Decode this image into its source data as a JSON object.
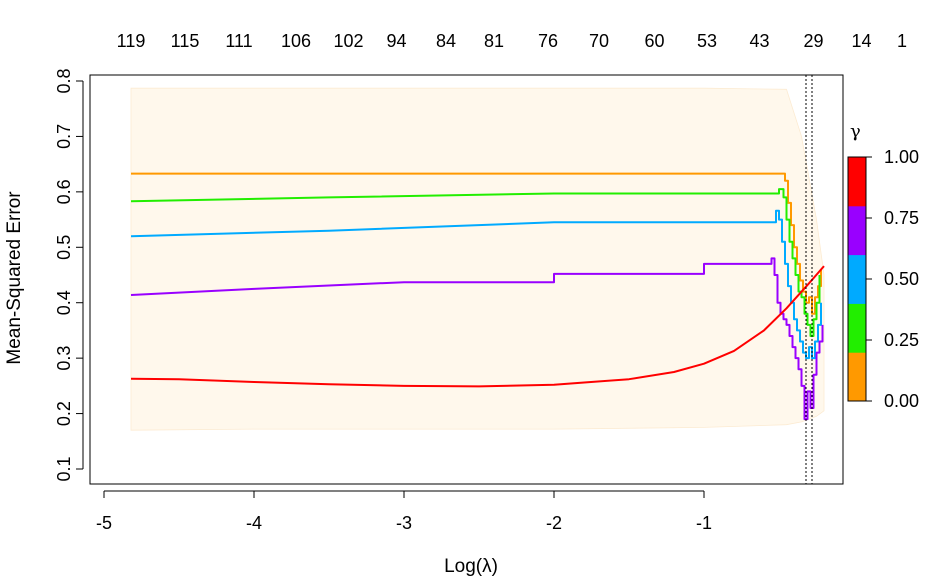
{
  "chart_data": {
    "type": "line",
    "xlabel": "Log(λ)",
    "ylabel": "Mean-Squared Error",
    "xlim": [
      -5.0,
      -0.1
    ],
    "ylim": [
      0.08,
      0.82
    ],
    "x_ticks": [
      -5,
      -4,
      -3,
      -2,
      -1
    ],
    "x_tick_labels": [
      "-5",
      "-4",
      "-3",
      "-2",
      "-1"
    ],
    "y_ticks": [
      0.1,
      0.2,
      0.3,
      0.4,
      0.5,
      0.6,
      0.7,
      0.8
    ],
    "y_tick_labels": [
      "0.1",
      "0.2",
      "0.3",
      "0.4",
      "0.5",
      "0.6",
      "0.7",
      "0.8"
    ],
    "top_axis": {
      "x": [
        -4.82,
        -4.46,
        -4.1,
        -3.72,
        -3.37,
        -3.05,
        -2.72,
        -2.4,
        -2.04,
        -1.7,
        -1.33,
        -0.98,
        -0.63,
        -0.27,
        0.05,
        0.32
      ],
      "labels": [
        "119",
        "115",
        "111",
        "106",
        "102",
        "94",
        "84",
        "81",
        "76",
        "70",
        "60",
        "53",
        "43",
        "29",
        "14",
        "1"
      ]
    },
    "vlines": [
      -0.32,
      -0.28
    ],
    "legend": {
      "title": "γ",
      "position": "right",
      "colors": [
        "#FF9900",
        "#22EE00",
        "#00AAFF",
        "#9900FF",
        "#FF0000"
      ],
      "tick_labels": [
        "0.00",
        "0.25",
        "0.50",
        "0.75",
        "1.00"
      ]
    },
    "series": [
      {
        "color": "#FF9900",
        "x": [
          -4.82,
          -1.0,
          -0.48,
          -0.46,
          -0.44,
          -0.42,
          -0.4,
          -0.38,
          -0.36,
          -0.34,
          -0.32,
          -0.3,
          -0.28,
          -0.26,
          -0.24,
          -0.22
        ],
        "y": [
          0.633,
          0.633,
          0.633,
          0.62,
          0.58,
          0.54,
          0.5,
          0.47,
          0.44,
          0.42,
          0.4,
          0.41,
          0.38,
          0.41,
          0.43,
          0.46
        ]
      },
      {
        "color": "#22EE00",
        "x": [
          -4.82,
          -3.5,
          -2.0,
          -0.5,
          -0.47,
          -0.45,
          -0.43,
          -0.41,
          -0.39,
          -0.37,
          -0.35,
          -0.33,
          -0.31,
          -0.29,
          -0.27,
          -0.25,
          -0.23
        ],
        "y": [
          0.583,
          0.59,
          0.597,
          0.605,
          0.59,
          0.55,
          0.51,
          0.48,
          0.45,
          0.42,
          0.41,
          0.38,
          0.36,
          0.34,
          0.37,
          0.4,
          0.45
        ]
      },
      {
        "color": "#00AAFF",
        "x": [
          -4.82,
          -3.5,
          -2.0,
          -0.52,
          -0.5,
          -0.48,
          -0.46,
          -0.44,
          -0.42,
          -0.4,
          -0.38,
          -0.36,
          -0.34,
          -0.32,
          -0.3,
          -0.28,
          -0.26,
          -0.24,
          -0.22
        ],
        "y": [
          0.52,
          0.53,
          0.545,
          0.566,
          0.55,
          0.51,
          0.47,
          0.43,
          0.4,
          0.37,
          0.35,
          0.33,
          0.31,
          0.3,
          0.32,
          0.3,
          0.33,
          0.36,
          0.4
        ]
      },
      {
        "color": "#9900FF",
        "x": [
          -4.82,
          -4.0,
          -3.0,
          -2.0,
          -1.0,
          -0.55,
          -0.53,
          -0.51,
          -0.49,
          -0.47,
          -0.45,
          -0.43,
          -0.41,
          -0.39,
          -0.37,
          -0.35,
          -0.33,
          -0.31,
          -0.29,
          -0.27,
          -0.25,
          -0.23,
          -0.21
        ],
        "y": [
          0.414,
          0.425,
          0.437,
          0.452,
          0.47,
          0.48,
          0.45,
          0.4,
          0.38,
          0.37,
          0.36,
          0.34,
          0.32,
          0.3,
          0.28,
          0.25,
          0.19,
          0.24,
          0.21,
          0.27,
          0.31,
          0.33,
          0.36
        ]
      },
      {
        "color": "#FF0000",
        "x": [
          -4.82,
          -4.5,
          -4.0,
          -3.5,
          -3.0,
          -2.5,
          -2.0,
          -1.5,
          -1.2,
          -1.0,
          -0.8,
          -0.6,
          -0.45,
          -0.3,
          -0.2
        ],
        "y": [
          0.263,
          0.262,
          0.257,
          0.253,
          0.25,
          0.249,
          0.252,
          0.262,
          0.275,
          0.29,
          0.313,
          0.35,
          0.39,
          0.435,
          0.466
        ]
      }
    ],
    "band": {
      "color": "#FFF8EC",
      "x": [
        -4.82,
        -4.0,
        -3.0,
        -2.0,
        -1.0,
        -0.45,
        -0.35,
        -0.25,
        -0.2
      ],
      "lower": [
        0.17,
        0.172,
        0.172,
        0.172,
        0.175,
        0.18,
        0.185,
        0.195,
        0.205
      ],
      "upper": [
        0.787,
        0.787,
        0.787,
        0.787,
        0.787,
        0.785,
        0.7,
        0.55,
        0.45
      ]
    }
  }
}
